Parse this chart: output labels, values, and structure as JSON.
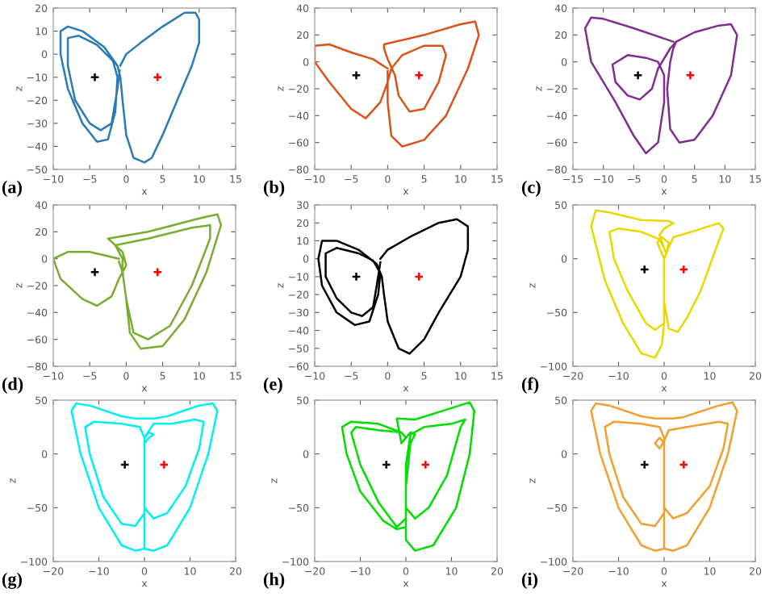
{
  "chart_data": [
    {
      "type": "line",
      "xlabel": "x",
      "ylabel": "z",
      "xlim": [
        -10,
        15
      ],
      "ylim": [
        -50,
        20
      ],
      "xticks": [
        -10,
        -5,
        0,
        5,
        10,
        15
      ],
      "yticks": [
        -50,
        -40,
        -30,
        -20,
        -10,
        0,
        10,
        20
      ],
      "annotations": [
        "(a)"
      ],
      "series": [
        {
          "color": "#2a7ab5",
          "x": [
            -0.8,
            0,
            2,
            5,
            8,
            9.5,
            10,
            10,
            9,
            7,
            5,
            3.5,
            2.5,
            1,
            0,
            -0.5,
            -0.8,
            -1.2,
            -3,
            -6,
            -8,
            -9,
            -9,
            -8,
            -6,
            -4,
            -2.5,
            -1.5,
            -1.2,
            -1.8,
            -4,
            -6.5,
            -8,
            -8,
            -7,
            -5,
            -3.5,
            -2,
            -1.2,
            -0.9
          ],
          "values": [
            -5,
            0,
            5,
            12,
            18,
            18,
            15,
            5,
            -5,
            -20,
            -35,
            -45,
            -47,
            -45,
            -35,
            -20,
            -10,
            -5,
            3,
            10,
            12,
            10,
            0,
            -15,
            -30,
            -38,
            -37,
            -25,
            -10,
            -3,
            4,
            8,
            7,
            -5,
            -20,
            -30,
            -33,
            -30,
            -15,
            -7
          ]
        },
        {
          "type": "scatter",
          "marker": "cross",
          "color": "#000000",
          "x": [
            -4.3
          ],
          "values": [
            -10
          ]
        },
        {
          "type": "scatter",
          "marker": "cross",
          "color": "#ff0000",
          "x": [
            4.3
          ],
          "values": [
            -10
          ]
        }
      ]
    },
    {
      "type": "line",
      "xlabel": "x",
      "ylabel": "z",
      "xlim": [
        -10,
        15
      ],
      "ylim": [
        -80,
        40
      ],
      "xticks": [
        -10,
        -5,
        0,
        5,
        10,
        15
      ],
      "yticks": [
        -80,
        -60,
        -40,
        -20,
        0,
        20,
        40
      ],
      "annotations": [
        "(b)"
      ],
      "series": [
        {
          "color": "#d95319",
          "x": [
            0,
            -2,
            -5,
            -8,
            -10,
            -10,
            -8,
            -5,
            -3,
            -1,
            0,
            0.5,
            2,
            5,
            7.5,
            8,
            7,
            5,
            3,
            1.5,
            1,
            0,
            -0.5,
            -0.5,
            5,
            10,
            12,
            12.5,
            11,
            8,
            5,
            2,
            0.5,
            0,
            0
          ],
          "values": [
            -5,
            2,
            7,
            13,
            12,
            0,
            -15,
            -35,
            -42,
            -30,
            -15,
            -5,
            5,
            12,
            12,
            5,
            -15,
            -35,
            -37,
            -25,
            -10,
            2,
            10,
            13,
            20,
            28,
            30,
            20,
            -5,
            -40,
            -58,
            -63,
            -55,
            -30,
            -7
          ]
        },
        {
          "type": "scatter",
          "marker": "cross",
          "color": "#000000",
          "x": [
            -4.3
          ],
          "values": [
            -10
          ]
        },
        {
          "type": "scatter",
          "marker": "cross",
          "color": "#ff0000",
          "x": [
            4.3
          ],
          "values": [
            -10
          ]
        }
      ]
    },
    {
      "type": "line",
      "xlabel": "x",
      "ylabel": "z",
      "xlim": [
        -15,
        15
      ],
      "ylim": [
        -80,
        40
      ],
      "xticks": [
        -15,
        -10,
        -5,
        0,
        5,
        10,
        15
      ],
      "yticks": [
        -80,
        -60,
        -40,
        -20,
        0,
        20,
        40
      ],
      "annotations": [
        "(c)"
      ],
      "series": [
        {
          "color": "#7e2f8e",
          "x": [
            1.5,
            -5,
            -10,
            -12,
            -13,
            -12,
            -8,
            -5,
            -3,
            -1,
            0,
            0,
            -1,
            -3,
            -6,
            -8.5,
            -8,
            -6,
            -4,
            -2,
            -1,
            1,
            2,
            5,
            9,
            11,
            12,
            11,
            8,
            5,
            2.5,
            1,
            0.5,
            1,
            1.5,
            2
          ],
          "values": [
            15,
            25,
            32,
            33,
            25,
            0,
            -30,
            -55,
            -68,
            -60,
            -30,
            -10,
            0,
            3,
            5,
            -2,
            -15,
            -25,
            -28,
            -20,
            -5,
            10,
            15,
            22,
            27,
            28,
            20,
            -10,
            -40,
            -58,
            -60,
            -50,
            -20,
            0,
            10,
            15
          ]
        },
        {
          "type": "scatter",
          "marker": "cross",
          "color": "#000000",
          "x": [
            -4.3
          ],
          "values": [
            -10
          ]
        },
        {
          "type": "scatter",
          "marker": "cross",
          "color": "#ff0000",
          "x": [
            4.3
          ],
          "values": [
            -10
          ]
        }
      ]
    },
    {
      "type": "line",
      "xlabel": "x",
      "ylabel": "z",
      "xlim": [
        -10,
        15
      ],
      "ylim": [
        -80,
        40
      ],
      "xticks": [
        -10,
        -5,
        0,
        5,
        10,
        15
      ],
      "yticks": [
        -80,
        -60,
        -40,
        -20,
        0,
        20,
        40
      ],
      "annotations": [
        "(d)"
      ],
      "series": [
        {
          "color": "#77ac30",
          "x": [
            -1,
            -5,
            -8,
            -10,
            -9,
            -6,
            -4,
            -2,
            -1,
            0,
            -0.5,
            -2.5,
            3,
            10,
            12.5,
            13,
            11,
            8,
            5,
            2,
            0.5,
            0,
            -0.5,
            -0.5,
            -1.5,
            3,
            9,
            11.5,
            11.5,
            9,
            6,
            3,
            1,
            0,
            -0.5,
            -1
          ],
          "values": [
            0,
            5,
            5,
            0,
            -15,
            -30,
            -35,
            -28,
            -15,
            -5,
            5,
            15,
            20,
            30,
            33,
            25,
            -10,
            -45,
            -65,
            -67,
            -55,
            -30,
            -10,
            0,
            10,
            15,
            23,
            25,
            15,
            -20,
            -50,
            -60,
            -55,
            -30,
            -10,
            -2
          ]
        },
        {
          "type": "scatter",
          "marker": "cross",
          "color": "#000000",
          "x": [
            -4.3
          ],
          "values": [
            -10
          ]
        },
        {
          "type": "scatter",
          "marker": "cross",
          "color": "#ff0000",
          "x": [
            4.3
          ],
          "values": [
            -10
          ]
        }
      ]
    },
    {
      "type": "line",
      "xlabel": "x",
      "ylabel": "z",
      "xlim": [
        -10,
        15
      ],
      "ylim": [
        -60,
        30
      ],
      "xticks": [
        -10,
        -5,
        0,
        5,
        10,
        15
      ],
      "yticks": [
        -60,
        -50,
        -40,
        -30,
        -20,
        -10,
        0,
        10,
        20,
        30
      ],
      "annotations": [
        "(e)"
      ],
      "series": [
        {
          "color": "#000000",
          "x": [
            -1,
            0,
            3,
            7,
            9.5,
            11,
            11,
            10,
            7,
            5,
            3,
            1.5,
            0,
            -0.5,
            -0.8,
            -1.5,
            -4,
            -7,
            -9,
            -9.5,
            -9,
            -7,
            -4.5,
            -2.5,
            -1.3,
            -1,
            -2,
            -4,
            -7,
            -8.5,
            -8.5,
            -7,
            -5,
            -3.5,
            -2,
            -1.5,
            -1
          ],
          "values": [
            0,
            5,
            12,
            20,
            22,
            18,
            5,
            -10,
            -30,
            -45,
            -53,
            -50,
            -35,
            -20,
            -10,
            -3,
            5,
            10,
            10,
            0,
            -15,
            -30,
            -37,
            -35,
            -20,
            -8,
            -1,
            3,
            6,
            3,
            -10,
            -22,
            -30,
            -32,
            -27,
            -15,
            -2
          ]
        },
        {
          "type": "scatter",
          "marker": "cross",
          "color": "#000000",
          "x": [
            -4.3
          ],
          "values": [
            -10
          ]
        },
        {
          "type": "scatter",
          "marker": "cross",
          "color": "#ff0000",
          "x": [
            4.3
          ],
          "values": [
            -10
          ]
        }
      ]
    },
    {
      "type": "line",
      "xlabel": "x",
      "ylabel": "z",
      "xlim": [
        -20,
        20
      ],
      "ylim": [
        -100,
        50
      ],
      "xticks": [
        -20,
        -10,
        0,
        10,
        20
      ],
      "yticks": [
        -100,
        -50,
        0,
        50
      ],
      "annotations": [
        "(f)"
      ],
      "series": [
        {
          "color": "#e8d800",
          "x": [
            0,
            0,
            1,
            2,
            6,
            12,
            13,
            11,
            8,
            5,
            3,
            1,
            0,
            0,
            -1,
            -1.5,
            -0.5,
            1,
            0.5,
            -1,
            -5,
            -10,
            -12,
            -11,
            -8,
            -4,
            -2,
            0,
            -0.5,
            -2,
            -5,
            -9,
            -13,
            -16,
            -15,
            -12,
            -5,
            1,
            2,
            0,
            -1,
            0
          ],
          "values": [
            -60,
            0,
            10,
            20,
            25,
            33,
            28,
            5,
            -30,
            -55,
            -68,
            -65,
            -40,
            0,
            10,
            15,
            20,
            15,
            5,
            18,
            25,
            28,
            25,
            0,
            -30,
            -60,
            -66,
            -60,
            -80,
            -92,
            -88,
            -60,
            -20,
            30,
            45,
            43,
            36,
            35,
            33,
            28,
            22,
            10
          ]
        },
        {
          "type": "scatter",
          "marker": "cross",
          "color": "#000000",
          "x": [
            -4.3
          ],
          "values": [
            -10
          ]
        },
        {
          "type": "scatter",
          "marker": "cross",
          "color": "#ff0000",
          "x": [
            4.3
          ],
          "values": [
            -10
          ]
        }
      ]
    },
    {
      "type": "line",
      "xlabel": "x",
      "ylabel": "z",
      "xlim": [
        -20,
        20
      ],
      "ylim": [
        -100,
        50
      ],
      "xticks": [
        -20,
        -10,
        0,
        10,
        20
      ],
      "yticks": [
        -100,
        -50,
        0,
        50
      ],
      "annotations": [
        "(g)"
      ],
      "series": [
        {
          "color": "#00f0f0",
          "x": [
            0,
            -2,
            -5,
            -10,
            -14,
            -16,
            -15,
            -12,
            -5,
            -2,
            2,
            5,
            12,
            15,
            16,
            14,
            10,
            5,
            2,
            0,
            0,
            0,
            1,
            2,
            1,
            0,
            -1,
            -5,
            -11,
            -13,
            -12,
            -9,
            -5,
            -2,
            0,
            0,
            0,
            2,
            6,
            11,
            13,
            12,
            9,
            5,
            2,
            0,
            0
          ],
          "values": [
            -88,
            -90,
            -85,
            -50,
            0,
            40,
            47,
            45,
            35,
            33,
            33,
            35,
            45,
            47,
            40,
            0,
            -50,
            -85,
            -90,
            -88,
            -40,
            10,
            15,
            18,
            20,
            15,
            25,
            28,
            30,
            25,
            0,
            -40,
            -65,
            -67,
            -55,
            -10,
            15,
            28,
            28,
            32,
            30,
            5,
            -30,
            -55,
            -60,
            -50,
            -85
          ]
        },
        {
          "type": "scatter",
          "marker": "cross",
          "color": "#000000",
          "x": [
            -4.3
          ],
          "values": [
            -10
          ]
        },
        {
          "type": "scatter",
          "marker": "cross",
          "color": "#ff0000",
          "x": [
            4.3
          ],
          "values": [
            -10
          ]
        }
      ]
    },
    {
      "type": "line",
      "xlabel": "x",
      "ylabel": "z",
      "xlim": [
        -20,
        20
      ],
      "ylim": [
        -100,
        50
      ],
      "xticks": [
        -20,
        -10,
        0,
        10,
        20
      ],
      "yticks": [
        -100,
        -50,
        0,
        50
      ],
      "annotations": [
        "(h)"
      ],
      "series": [
        {
          "color": "#00dd00",
          "x": [
            0,
            -2,
            -5,
            -10,
            -13,
            -14,
            -12,
            -6,
            -1,
            0,
            -1,
            -2,
            2,
            8,
            14,
            15,
            14,
            11,
            6,
            2,
            0,
            0,
            1,
            2,
            1,
            0,
            -1,
            -6,
            -11,
            -12,
            -10,
            -6,
            -2,
            0,
            0,
            1,
            4,
            10,
            13,
            12,
            9,
            5,
            2,
            0,
            0
          ],
          "values": [
            -68,
            -70,
            -62,
            -35,
            0,
            25,
            30,
            28,
            20,
            15,
            10,
            33,
            32,
            40,
            48,
            40,
            0,
            -50,
            -85,
            -90,
            -80,
            -30,
            10,
            18,
            20,
            15,
            20,
            22,
            25,
            20,
            -10,
            -45,
            -68,
            -60,
            -10,
            18,
            25,
            28,
            32,
            25,
            -20,
            -50,
            -60,
            -50,
            -65
          ]
        },
        {
          "type": "scatter",
          "marker": "cross",
          "color": "#000000",
          "x": [
            -4.3
          ],
          "values": [
            -10
          ]
        },
        {
          "type": "scatter",
          "marker": "cross",
          "color": "#ff0000",
          "x": [
            4.3
          ],
          "values": [
            -10
          ]
        }
      ]
    },
    {
      "type": "line",
      "xlabel": "x",
      "ylabel": "z",
      "xlim": [
        -20,
        20
      ],
      "ylim": [
        -100,
        50
      ],
      "xticks": [
        -20,
        -10,
        0,
        10,
        20
      ],
      "yticks": [
        -100,
        -50,
        0,
        50
      ],
      "annotations": [
        "(i)"
      ],
      "series": [
        {
          "color": "#f0a030",
          "x": [
            0,
            -2,
            -5,
            -10,
            -14,
            -16,
            -15,
            -12,
            -5,
            -2,
            2,
            4,
            12,
            15,
            16,
            14,
            10,
            5,
            2,
            0,
            0,
            0,
            -1,
            -2,
            -1,
            0,
            1,
            5,
            12,
            14,
            13,
            10,
            5,
            2,
            0,
            0,
            0,
            -1,
            -5,
            -11,
            -13,
            -12,
            -9,
            -5,
            -2,
            0,
            0
          ],
          "values": [
            -88,
            -90,
            -85,
            -50,
            0,
            40,
            47,
            45,
            35,
            33,
            33,
            34,
            45,
            48,
            40,
            0,
            -50,
            -85,
            -90,
            -88,
            -40,
            10,
            15,
            10,
            5,
            12,
            22,
            25,
            30,
            28,
            5,
            -30,
            -55,
            -60,
            -50,
            -10,
            15,
            25,
            28,
            30,
            25,
            0,
            -40,
            -65,
            -67,
            -55,
            -85
          ]
        },
        {
          "type": "scatter",
          "marker": "cross",
          "color": "#000000",
          "x": [
            -4.3
          ],
          "values": [
            -10
          ]
        },
        {
          "type": "scatter",
          "marker": "cross",
          "color": "#ff0000",
          "x": [
            4.3
          ],
          "values": [
            -10
          ]
        }
      ]
    }
  ]
}
